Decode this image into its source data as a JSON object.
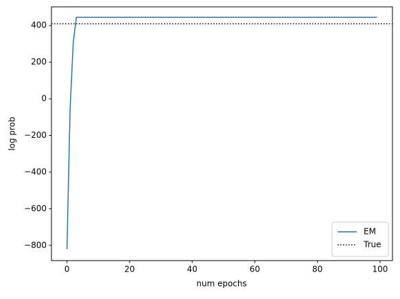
{
  "chart_data": {
    "type": "line",
    "xlabel": "num epochs",
    "ylabel": "log prob",
    "x": [
      0,
      1,
      2,
      3,
      4,
      5,
      6,
      7,
      8,
      9,
      10,
      11,
      12,
      13,
      14,
      15,
      16,
      17,
      18,
      19,
      20,
      21,
      22,
      23,
      24,
      25,
      26,
      27,
      28,
      29,
      30,
      31,
      32,
      33,
      34,
      35,
      36,
      37,
      38,
      39,
      40,
      41,
      42,
      43,
      44,
      45,
      46,
      47,
      48,
      49,
      50,
      51,
      52,
      53,
      54,
      55,
      56,
      57,
      58,
      59,
      60,
      61,
      62,
      63,
      64,
      65,
      66,
      67,
      68,
      69,
      70,
      71,
      72,
      73,
      74,
      75,
      76,
      77,
      78,
      79,
      80,
      81,
      82,
      83,
      84,
      85,
      86,
      87,
      88,
      89,
      90,
      91,
      92,
      93,
      94,
      95,
      96,
      97,
      98,
      99
    ],
    "series": [
      {
        "name": "EM",
        "color": "#1f77b4",
        "values": [
          -820,
          -55,
          305,
          445,
          445,
          445,
          445,
          445,
          445,
          445,
          445,
          445,
          445,
          445,
          445,
          445,
          445,
          445,
          445,
          445,
          445,
          445,
          445,
          445,
          445,
          445,
          445,
          445,
          445,
          445,
          445,
          445,
          445,
          445,
          445,
          445,
          445,
          445,
          445,
          445,
          445,
          445,
          445,
          445,
          445,
          445,
          445,
          445,
          445,
          445,
          445,
          445,
          445,
          445,
          445,
          445,
          445,
          445,
          445,
          445,
          445,
          445,
          445,
          445,
          445,
          445,
          445,
          445,
          445,
          445,
          445,
          445,
          445,
          445,
          445,
          445,
          445,
          445,
          445,
          445,
          445,
          445,
          445,
          445,
          445,
          445,
          445,
          445,
          445,
          445,
          445,
          445,
          445,
          445,
          445,
          445,
          445,
          445,
          445,
          445
        ]
      }
    ],
    "reference": {
      "name": "True",
      "value": 410,
      "color": "#000000",
      "style": "dotted"
    },
    "xlim": [
      -4.95,
      103.95
    ],
    "xticks": [
      0,
      20,
      40,
      60,
      80,
      100
    ],
    "ylim": [
      -883,
      502
    ],
    "yticks": [
      {
        "value": -800,
        "label": "−800"
      },
      {
        "value": -600,
        "label": "−600"
      },
      {
        "value": -400,
        "label": "−400"
      },
      {
        "value": -200,
        "label": "−200"
      },
      0,
      200,
      400
    ],
    "legend": "lower right",
    "grid": false
  }
}
